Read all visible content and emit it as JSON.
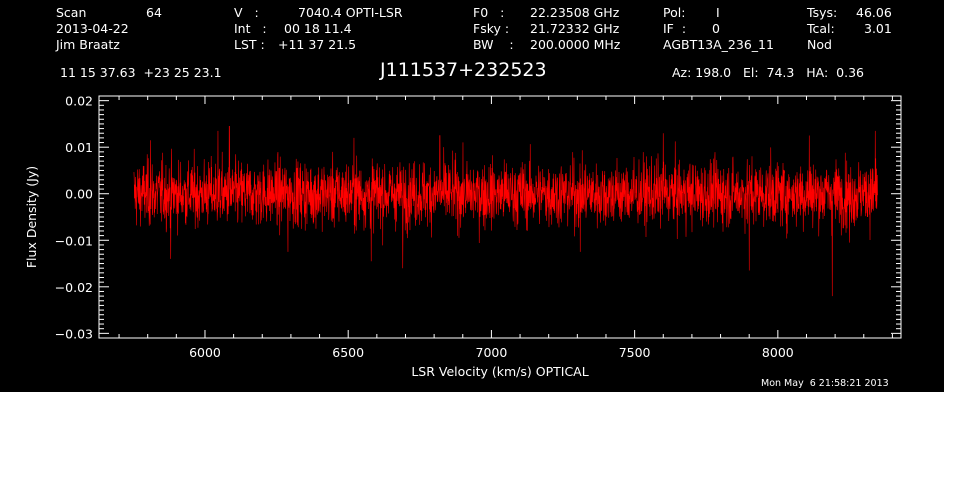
{
  "header": {
    "row1": [
      {
        "label": "Scan",
        "value": "64"
      },
      {
        "label": "V   :",
        "value": "7040.4 OPTI-LSR"
      },
      {
        "label": "F0   :",
        "value": "22.23508 GHz"
      },
      {
        "label": "Pol:",
        "value": "I"
      },
      {
        "label": "Tsys:",
        "value": "46.06"
      }
    ],
    "row2": [
      {
        "label": "2013-04-22",
        "value": ""
      },
      {
        "label": "Int   :",
        "value": "00 18 11.4"
      },
      {
        "label": "Fsky :",
        "value": "21.72332 GHz"
      },
      {
        "label": "IF  :",
        "value": "0"
      },
      {
        "label": "Tcal:",
        "value": "3.01"
      }
    ],
    "row3": [
      {
        "label": "Jim Braatz",
        "value": ""
      },
      {
        "label": "LST :",
        "value": "+11 37 21.5"
      },
      {
        "label": "BW    :",
        "value": "200.0000 MHz"
      },
      {
        "label": "AGBT13A_236_11",
        "value": ""
      },
      {
        "label": "Nod",
        "value": ""
      }
    ],
    "coords": "11 15 37.63  +23 25 23.1",
    "source": "J111537+232523",
    "az_el_ha": "Az: 198.0   El:  74.3   HA:  0.36",
    "timestamp": "Mon May  6 21:58:21 2013"
  },
  "chart_data": {
    "type": "line",
    "title": "",
    "xlabel": "LSR Velocity (km/s) OPTICAL",
    "ylabel": "Flux Density (Jy)",
    "xlim": [
      5630,
      8430
    ],
    "ylim": [
      -0.031,
      0.021
    ],
    "x_ticks": [
      6000,
      6500,
      7000,
      7500,
      8000
    ],
    "x_tick_labels": [
      "6000",
      "6500",
      "7000",
      "7500",
      "8000"
    ],
    "y_ticks": [
      -0.03,
      -0.02,
      -0.01,
      0.0,
      0.01,
      0.02
    ],
    "y_tick_labels": [
      "−0.03",
      "−0.02",
      "−0.01",
      "0.00",
      "0.01",
      "0.02"
    ],
    "series": [
      {
        "color": "#ff0000",
        "x_range": [
          5752,
          8348
        ],
        "noise_rms": 0.0035,
        "extremes": [
          {
            "x": 6085,
            "y": 0.0145
          },
          {
            "x": 6045,
            "y": 0.0135
          },
          {
            "x": 5810,
            "y": 0.0115
          },
          {
            "x": 6520,
            "y": 0.012
          },
          {
            "x": 6820,
            "y": 0.0125
          },
          {
            "x": 7600,
            "y": 0.013
          },
          {
            "x": 8110,
            "y": 0.0125
          },
          {
            "x": 8340,
            "y": 0.0135
          },
          {
            "x": 5880,
            "y": -0.014
          },
          {
            "x": 6290,
            "y": -0.0125
          },
          {
            "x": 6580,
            "y": -0.0145
          },
          {
            "x": 6690,
            "y": -0.016
          },
          {
            "x": 7310,
            "y": -0.0125
          },
          {
            "x": 7900,
            "y": -0.0165
          },
          {
            "x": 8190,
            "y": -0.022
          },
          {
            "x": 8250,
            "y": -0.0105
          }
        ]
      }
    ],
    "grid": false,
    "background": "#000000",
    "axis_color": "#ffffff"
  }
}
